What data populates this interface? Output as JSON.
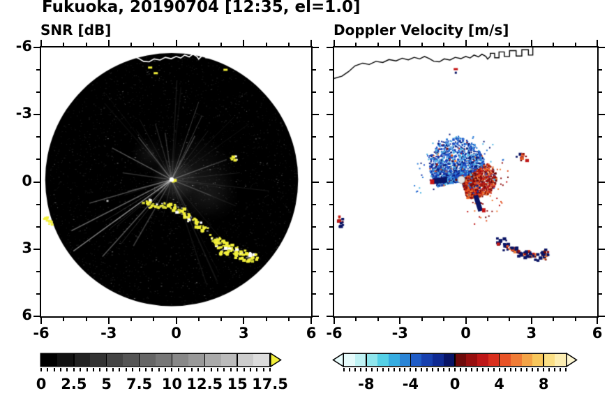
{
  "header": {
    "title": "Fukuoka, 20190704 [12:35, el=1.0]"
  },
  "coastline": [
    [
      -6,
      4.62
    ],
    [
      -5.65,
      4.72
    ],
    [
      -5.35,
      4.92
    ],
    [
      -5.05,
      5.18
    ],
    [
      -4.7,
      5.3
    ],
    [
      -4.4,
      5.24
    ],
    [
      -4.1,
      5.38
    ],
    [
      -3.78,
      5.33
    ],
    [
      -3.5,
      5.46
    ],
    [
      -3.18,
      5.4
    ],
    [
      -2.9,
      5.52
    ],
    [
      -2.62,
      5.45
    ],
    [
      -2.35,
      5.56
    ],
    [
      -2.1,
      5.49
    ],
    [
      -1.88,
      5.6
    ],
    [
      -1.65,
      5.5
    ],
    [
      -1.45,
      5.38
    ],
    [
      -1.2,
      5.36
    ],
    [
      -0.98,
      5.49
    ],
    [
      -0.72,
      5.44
    ],
    [
      -0.48,
      5.56
    ],
    [
      -0.22,
      5.5
    ],
    [
      0,
      5.6
    ],
    [
      0.2,
      5.53
    ],
    [
      0.38,
      5.66
    ],
    [
      0.58,
      5.58
    ],
    [
      0.74,
      5.7
    ],
    [
      0.92,
      5.6
    ],
    [
      1,
      5.48
    ],
    [
      1.12,
      5.6
    ],
    [
      1.12,
      5.74
    ],
    [
      1.32,
      5.74
    ],
    [
      1.32,
      5.54
    ],
    [
      1.52,
      5.54
    ],
    [
      1.52,
      5.8
    ],
    [
      1.76,
      5.8
    ],
    [
      1.76,
      5.6
    ],
    [
      2,
      5.6
    ],
    [
      2,
      5.86
    ],
    [
      2.3,
      5.86
    ],
    [
      2.3,
      5.62
    ],
    [
      2.56,
      5.62
    ],
    [
      2.56,
      5.9
    ],
    [
      2.86,
      5.9
    ],
    [
      2.86,
      5.66
    ],
    [
      3.06,
      5.66
    ],
    [
      3.06,
      6.05
    ]
  ],
  "chart_data": [
    {
      "id": "snr",
      "type": "heatmap",
      "title": "SNR [dB]",
      "xlim": [
        -6,
        6
      ],
      "ylim": [
        -6,
        6
      ],
      "xticks": {
        "values": [
          -6,
          -3,
          0,
          3,
          6
        ],
        "labels": [
          "-6",
          "-3",
          "0",
          "3",
          "6"
        ]
      },
      "yticks": {
        "values": [
          -6,
          -3,
          0,
          3,
          6
        ],
        "labels": [
          "6",
          "3",
          "0",
          "-3",
          "-6"
        ]
      },
      "minor_tick_step": 1,
      "colorbar": {
        "range": [
          0,
          17.5
        ],
        "tick_values": [
          0,
          2.5,
          5,
          7.5,
          10,
          12.5,
          15,
          17.5
        ],
        "tick_labels": [
          "0",
          "2.5",
          "5",
          "7.5",
          "10",
          "12.5",
          "15",
          "17.5"
        ],
        "minor_step": 0.5,
        "colors": [
          "#000000",
          "#111111",
          "#222222",
          "#333333",
          "#444444",
          "#555555",
          "#666666",
          "#777777",
          "#888888",
          "#999999",
          "#aaaaaa",
          "#bbbbbb",
          "#cccccc",
          "#dddddd"
        ],
        "arrow_left": null,
        "arrow_right": "#f2ef3a"
      },
      "scan": {
        "center": [
          -0.2,
          0.1
        ],
        "radius": 5.62,
        "background": "#000000",
        "noise_dots": 2600,
        "rays": 40,
        "haze": [
          [
            0.75,
            0.2,
            1.9,
            0.16
          ],
          [
            -0.05,
            0.1,
            1.0,
            0.3
          ],
          [
            -1.2,
            1.2,
            0.8,
            0.12
          ],
          [
            1.6,
            -0.6,
            1.2,
            0.1
          ]
        ],
        "strong_rays": [
          [
            207,
            5.0,
            0.4
          ],
          [
            216,
            5.4,
            0.5
          ],
          [
            228,
            4.6,
            0.35
          ],
          [
            240,
            3.4,
            0.25
          ],
          [
            196,
            3.8,
            0.3
          ],
          [
            152,
            3.0,
            0.3
          ],
          [
            128,
            2.4,
            0.25
          ],
          [
            98,
            2.1,
            0.2
          ],
          [
            62,
            2.2,
            0.25
          ],
          [
            20,
            2.6,
            0.2
          ],
          [
            338,
            1.9,
            0.15
          ],
          [
            172,
            2.2,
            0.2
          ]
        ],
        "near_arc": [
          [
            -1.35,
            -0.85
          ],
          [
            -1.05,
            -1.0
          ],
          [
            -0.75,
            -1.05
          ],
          [
            -0.45,
            -1.0
          ],
          [
            -0.15,
            -1.1
          ],
          [
            0.1,
            -1.25
          ],
          [
            0.4,
            -1.45
          ],
          [
            0.65,
            -1.6
          ],
          [
            0.95,
            -1.85
          ],
          [
            1.2,
            -2.05
          ]
        ],
        "south_arc": [
          [
            1.7,
            -2.5
          ],
          [
            1.95,
            -2.7
          ],
          [
            2.2,
            -2.9
          ],
          [
            2.5,
            -3.05
          ],
          [
            2.8,
            -3.2
          ],
          [
            3.1,
            -3.3
          ],
          [
            3.35,
            -3.35
          ],
          [
            2.05,
            -3.05
          ]
        ],
        "islet": [
          2.5,
          1.15
        ],
        "west_patch": [
          -5.72,
          -1.7
        ],
        "top_specks": [
          [
            -1.25,
            5.15
          ],
          [
            -1.0,
            4.9
          ],
          [
            2.1,
            5.05
          ]
        ],
        "clutter_color": "#f2ef3a"
      }
    },
    {
      "id": "doppler",
      "type": "heatmap",
      "title": "Doppler Velocity [m/s]",
      "xlim": [
        -6,
        6
      ],
      "ylim": [
        -6,
        6
      ],
      "xticks": {
        "values": [
          -6,
          -3,
          0,
          3,
          6
        ],
        "labels": [
          "-6",
          "-3",
          "0",
          "3",
          "6"
        ]
      },
      "yticks": {
        "values": [
          -6,
          -3,
          0,
          3,
          6
        ],
        "labels": [
          "6",
          "3",
          "0",
          "-3",
          "-6"
        ]
      },
      "minor_tick_step": 1,
      "colorbar": {
        "range": [
          -10,
          10
        ],
        "tick_values": [
          -8,
          -4,
          0,
          4,
          8
        ],
        "tick_labels": [
          "-8",
          "-4",
          "0",
          "4",
          "8"
        ],
        "minor_step": 0.5,
        "colors": [
          "#e6fbfb",
          "#bff2f4",
          "#8fe5ec",
          "#55d0e6",
          "#36ace0",
          "#2a84d6",
          "#1f5cc6",
          "#1740ae",
          "#0f2a92",
          "#081465",
          "#6e0a0a",
          "#970f0f",
          "#bd1717",
          "#d92f1d",
          "#e85327",
          "#f07c36",
          "#f4a447",
          "#f8c75c",
          "#fbdf85",
          "#fdeeb2"
        ],
        "arrow_left": "#eafdfd",
        "arrow_right": "#fdf6d2"
      },
      "scan": {
        "center": [
          -0.2,
          0.1
        ],
        "navy": "#0a1464",
        "red": "#c41414",
        "blue_colors": [
          "#1f4fc8",
          "#1636aa",
          "#2f7fd9",
          "#0d1e7a",
          "#4fb6e4"
        ],
        "red_colors": [
          "#c01818",
          "#8f0f0f",
          "#e25020",
          "#6f0808",
          "#f07c36"
        ],
        "blue_fan": {
          "count": 1500,
          "angle": [
            30,
            195
          ],
          "peak_angle": 110,
          "sigma": 70,
          "min_r": 0.5,
          "max_r": 1.95
        },
        "red_fan": {
          "count": 1150,
          "angle": [
            -75,
            35
          ],
          "peak_angle": 5,
          "sigma": 55,
          "min_r": 0.45,
          "max_r": 1.5
        },
        "west_streak": [
          [
            -1.5,
            0.02
          ],
          [
            -0.85,
            0.1
          ]
        ],
        "south_streak": [
          [
            0.45,
            -0.6
          ],
          [
            0.68,
            -1.3
          ]
        ],
        "islet": [
          2.5,
          1.15
        ],
        "west_patch": [
          -5.72,
          -1.7
        ],
        "south_arc": [
          [
            1.6,
            -2.6
          ],
          [
            1.9,
            -2.85
          ],
          [
            2.2,
            -3.0
          ],
          [
            2.5,
            -3.1
          ],
          [
            2.8,
            -3.2
          ],
          [
            3.1,
            -3.3
          ],
          [
            3.4,
            -3.3
          ],
          [
            3.62,
            -3.08
          ]
        ],
        "top_specks": [
          [
            -0.55,
            5.08
          ]
        ]
      }
    }
  ]
}
